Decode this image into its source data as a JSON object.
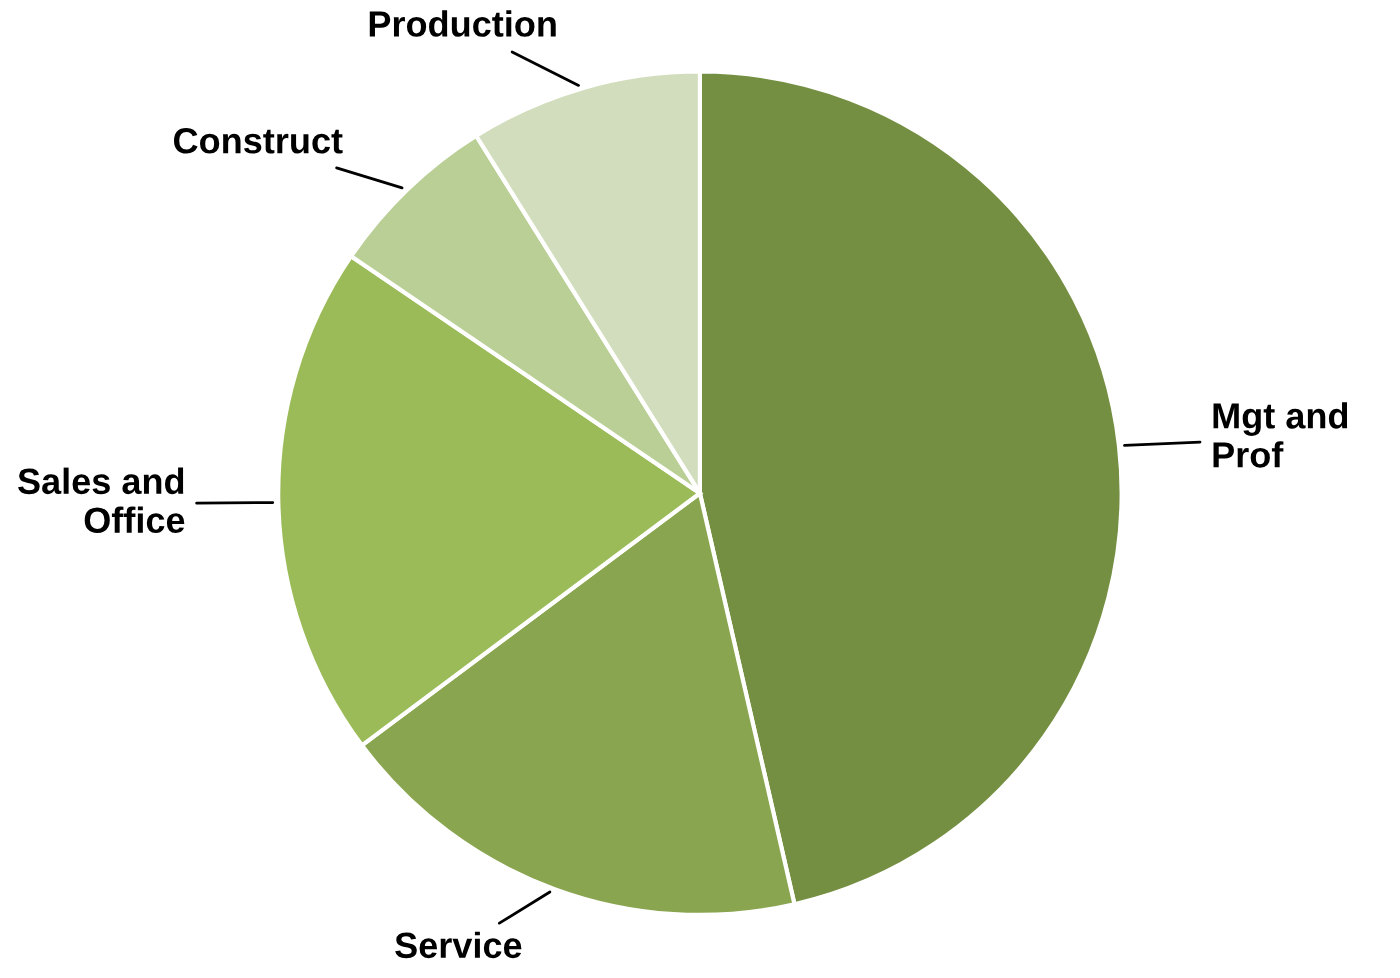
{
  "chart_data": {
    "type": "pie",
    "categories": [
      "Mgt and\nProf",
      "Service",
      "Sales and\nOffice",
      "Construct",
      "Production"
    ],
    "values": [
      46.4,
      18.4,
      19.7,
      6.6,
      8.9
    ],
    "colors": [
      "#758f42",
      "#8aa54f",
      "#9bbb59",
      "#bacf96",
      "#d1ddbc"
    ],
    "legend": false
  }
}
